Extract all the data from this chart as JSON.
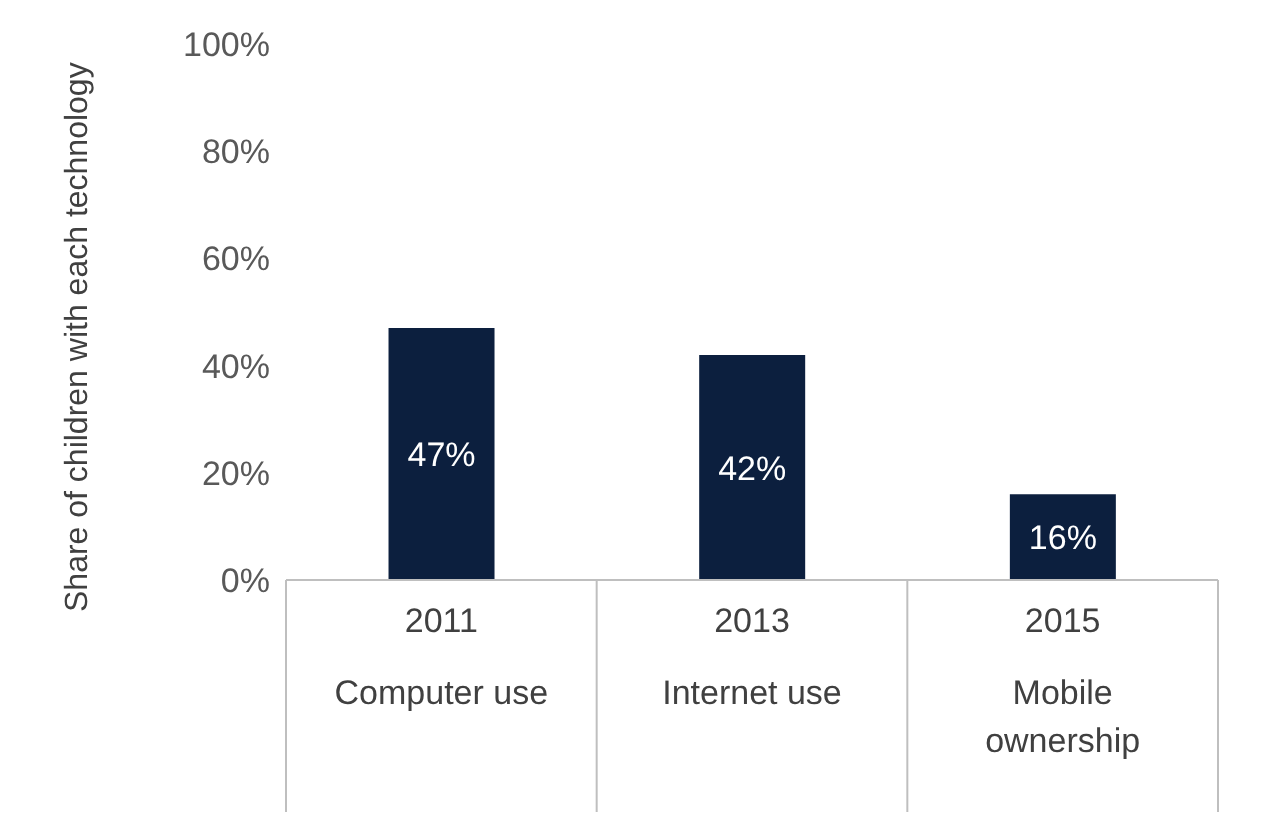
{
  "chart_data": {
    "type": "bar",
    "ylabel": "Share of children with each technology",
    "categories": [
      "2011\nComputer use",
      "2013\nInternet use",
      "2015\nMobile\nownership"
    ],
    "values": [
      47,
      42,
      16
    ],
    "color": "#0c1f3e",
    "value_labels": [
      "47%",
      "42%",
      "16%"
    ],
    "ylim": [
      0,
      100
    ],
    "yticks": [
      {
        "value": 0,
        "label": "0%"
      },
      {
        "value": 20,
        "label": "20%"
      },
      {
        "value": 40,
        "label": "40%"
      },
      {
        "value": 60,
        "label": "60%"
      },
      {
        "value": 80,
        "label": "80%"
      },
      {
        "value": 100,
        "label": "100%"
      }
    ],
    "grid": false,
    "legend": false
  }
}
